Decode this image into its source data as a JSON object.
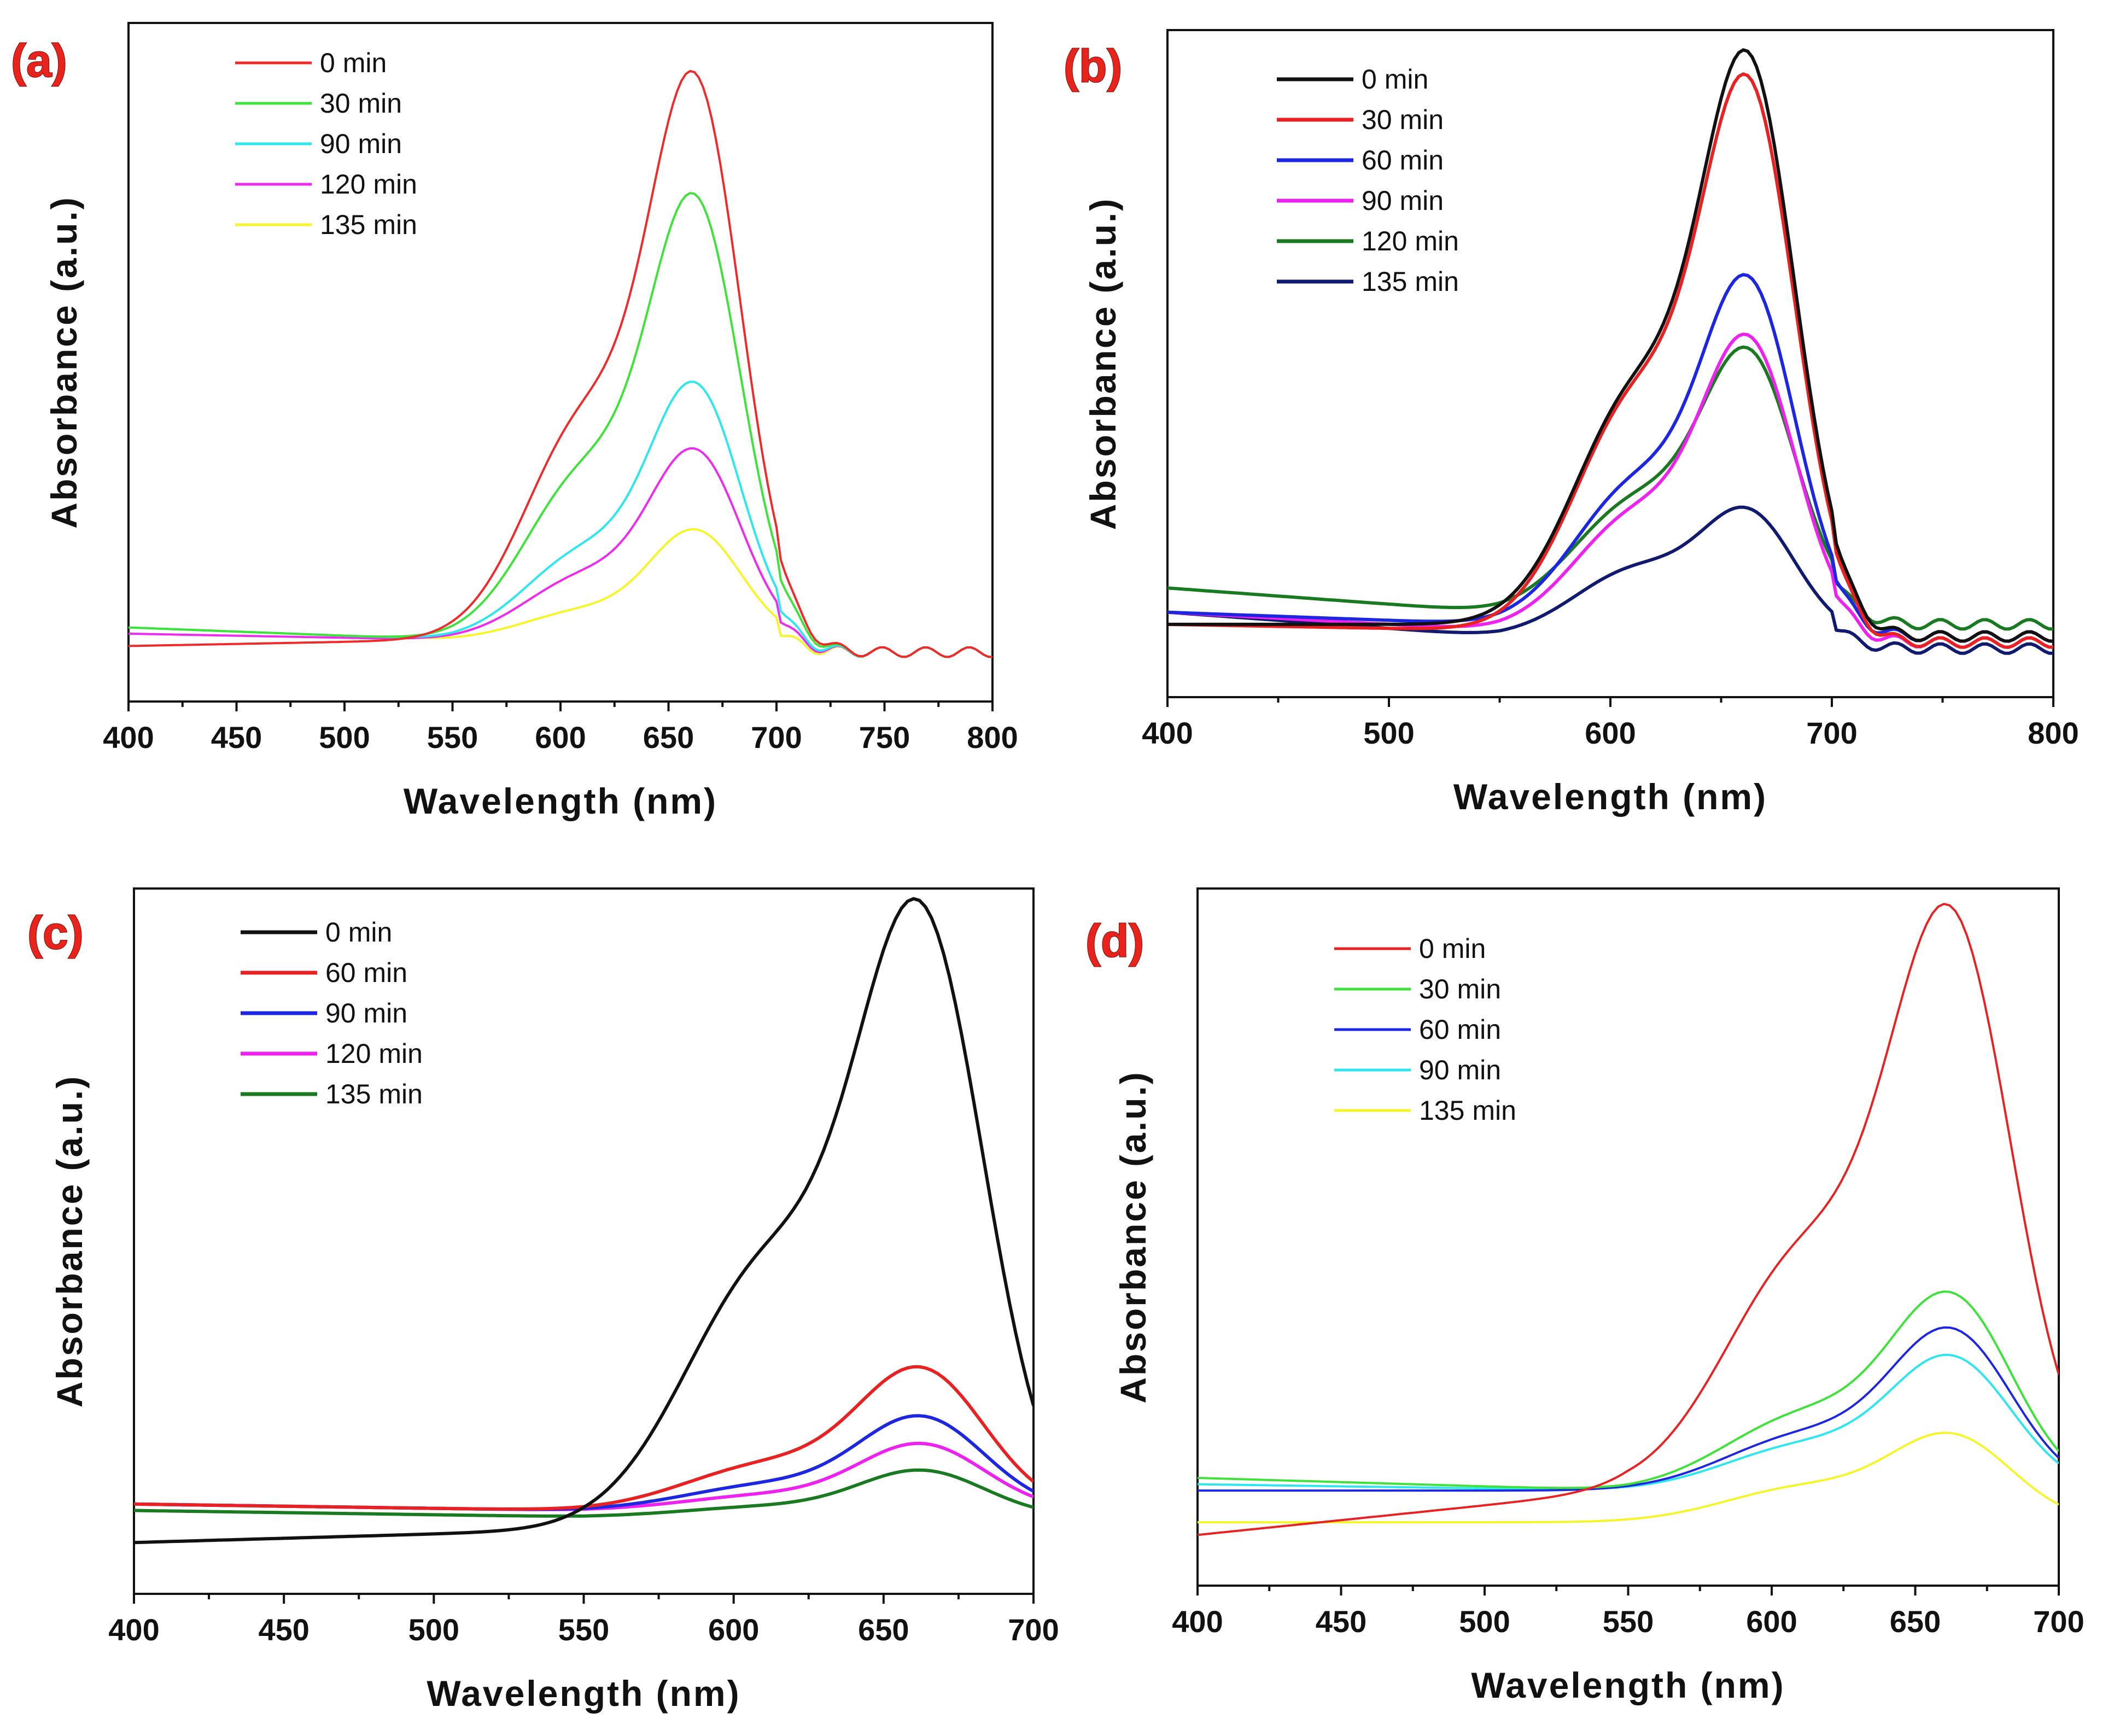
{
  "chart_data": [
    {
      "type": "line",
      "panel_label": "(a)",
      "xlabel": "Wavelength (nm)",
      "ylabel": "Absorbance (a.u.)",
      "xlim": [
        400,
        800
      ],
      "ylim": [
        0,
        1.1
      ],
      "xticks": [
        400,
        450,
        500,
        550,
        600,
        650,
        700,
        750,
        800
      ],
      "legend_position": "top-left",
      "series": [
        {
          "name": "0 min",
          "color": "#ee2a2a",
          "peak": 0.95,
          "shoulder": 0.55,
          "baseline": 0.1,
          "base400": 0.09
        },
        {
          "name": "30 min",
          "color": "#3ee23a",
          "peak": 0.77,
          "shoulder": 0.44,
          "baseline": 0.1,
          "base400": 0.12
        },
        {
          "name": "90 min",
          "color": "#2ee6ee",
          "peak": 0.49,
          "shoulder": 0.28,
          "baseline": 0.1,
          "base400": 0.12
        },
        {
          "name": "120 min",
          "color": "#ee2aee",
          "peak": 0.39,
          "shoulder": 0.23,
          "baseline": 0.1,
          "base400": 0.11
        },
        {
          "name": "135 min",
          "color": "#f5f52a",
          "peak": 0.27,
          "shoulder": 0.16,
          "baseline": 0.1,
          "base400": 0.12
        }
      ]
    },
    {
      "type": "line",
      "panel_label": "(b)",
      "xlabel": "Wavelength (nm)",
      "ylabel": "Absorbance (a.u.)",
      "xlim": [
        400,
        800
      ],
      "ylim": [
        0,
        1.1
      ],
      "xticks": [
        400,
        500,
        600,
        700,
        800
      ],
      "legend_position": "top-left",
      "series": [
        {
          "name": "0 min",
          "color": "#111111",
          "peak": 0.99,
          "shoulder": 0.6,
          "baseline": 0.12,
          "base400": 0.12
        },
        {
          "name": "30 min",
          "color": "#e82222",
          "peak": 0.95,
          "shoulder": 0.59,
          "baseline": 0.11,
          "base400": 0.12
        },
        {
          "name": "60 min",
          "color": "#1d26e0",
          "peak": 0.65,
          "shoulder": 0.41,
          "baseline": 0.12,
          "base400": 0.14
        },
        {
          "name": "90 min",
          "color": "#ee22ee",
          "peak": 0.56,
          "shoulder": 0.35,
          "baseline": 0.11,
          "base400": 0.14
        },
        {
          "name": "120 min",
          "color": "#1a7a22",
          "peak": 0.54,
          "shoulder": 0.37,
          "baseline": 0.14,
          "base400": 0.18
        },
        {
          "name": "135 min",
          "color": "#101a6e",
          "peak": 0.29,
          "shoulder": 0.24,
          "baseline": 0.1,
          "base400": 0.14
        }
      ]
    },
    {
      "type": "line",
      "panel_label": "(c)",
      "xlabel": "Wavelength (nm)",
      "ylabel": "Absorbance (a.u.)",
      "xlim": [
        400,
        700
      ],
      "ylim": [
        0,
        1.1
      ],
      "xticks": [
        400,
        450,
        500,
        550,
        600,
        650,
        700
      ],
      "legend_position": "top-left",
      "series": [
        {
          "name": "0  min",
          "color": "#111111",
          "peak": 1.0,
          "shoulder": 0.62,
          "baseline": 0.1,
          "base400": 0.08
        },
        {
          "name": "60 min",
          "color": "#e82222",
          "peak": 0.34,
          "shoulder": 0.22,
          "baseline": 0.13,
          "base400": 0.14
        },
        {
          "name": "90 min",
          "color": "#1d26e0",
          "peak": 0.27,
          "shoulder": 0.18,
          "baseline": 0.13,
          "base400": 0.14
        },
        {
          "name": "120 min",
          "color": "#ee22ee",
          "peak": 0.23,
          "shoulder": 0.16,
          "baseline": 0.13,
          "base400": 0.14
        },
        {
          "name": "135 min",
          "color": "#1a7a22",
          "peak": 0.19,
          "shoulder": 0.14,
          "baseline": 0.12,
          "base400": 0.13
        }
      ]
    },
    {
      "type": "line",
      "panel_label": "(d)",
      "xlabel": "Wavelength (nm)",
      "ylabel": "Absorbance (a.u.)",
      "xlim": [
        400,
        700
      ],
      "ylim": [
        0,
        1.1
      ],
      "xticks": [
        400,
        450,
        500,
        550,
        600,
        650,
        700
      ],
      "legend_position": "top-left",
      "series": [
        {
          "name": "0 min",
          "color": "#e82222",
          "peak": 1.0,
          "shoulder": 0.62,
          "baseline": 0.15,
          "base400": 0.08
        },
        {
          "name": "30 min",
          "color": "#3ee23a",
          "peak": 0.44,
          "shoulder": 0.3,
          "baseline": 0.15,
          "base400": 0.17
        },
        {
          "name": "60 min",
          "color": "#1d26e0",
          "peak": 0.39,
          "shoulder": 0.26,
          "baseline": 0.15,
          "base400": 0.15
        },
        {
          "name": "90 min",
          "color": "#2ee6ee",
          "peak": 0.35,
          "shoulder": 0.24,
          "baseline": 0.15,
          "base400": 0.16
        },
        {
          "name": "135 min",
          "color": "#f5f52a",
          "peak": 0.23,
          "shoulder": 0.17,
          "baseline": 0.1,
          "base400": 0.1
        }
      ]
    }
  ]
}
